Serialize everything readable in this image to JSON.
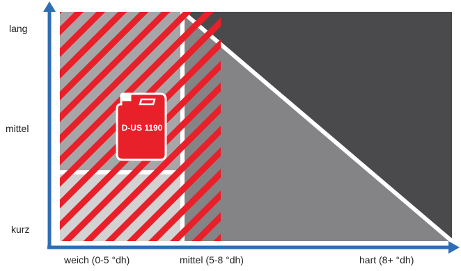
{
  "y_axis": {
    "labels": [
      "lang",
      "mittel",
      "kurz"
    ]
  },
  "x_axis": {
    "labels": [
      "weich (0-5 °dh)",
      "mittel (5-8 °dh)",
      "hart (8+ °dh)"
    ]
  },
  "product": {
    "label": "D-US 1190",
    "icon": "canister-icon"
  },
  "colors": {
    "axis": "#2f6db5",
    "dark_zone": "#4a4a4c",
    "mid_zone": "#848486",
    "light_zone": "#a6a6a8",
    "lightest_zone": "#d2d2d3",
    "highlight_red": "#e8202a",
    "background": "#ffffff"
  }
}
